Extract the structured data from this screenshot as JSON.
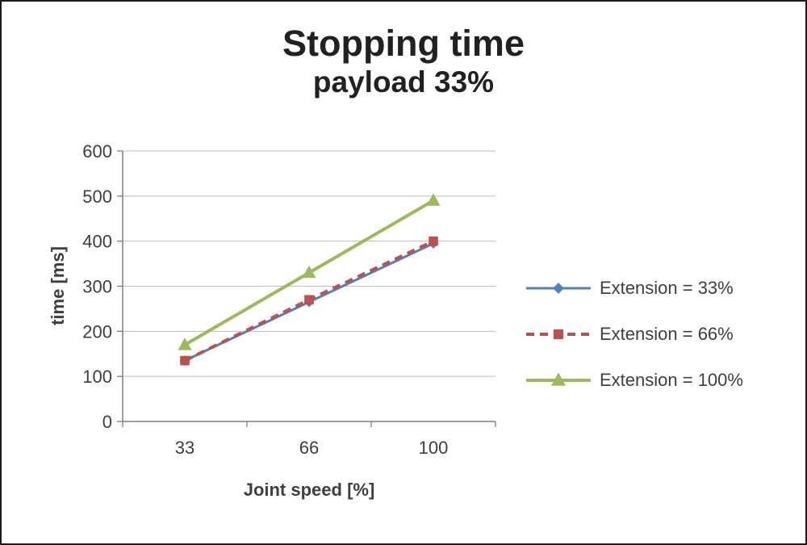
{
  "chart_data": {
    "type": "line",
    "title": "Stopping time",
    "subtitle": "payload 33%",
    "xlabel": "Joint speed [%]",
    "ylabel": "time [ms]",
    "categories": [
      "33",
      "66",
      "100"
    ],
    "series": [
      {
        "name": "Extension = 33%",
        "values": [
          135,
          265,
          395
        ],
        "color": "#4F81BD",
        "marker": "diamond",
        "dash": false,
        "width": 3
      },
      {
        "name": "Extension = 66%",
        "values": [
          135,
          270,
          400
        ],
        "color": "#C0504D",
        "marker": "square",
        "dash": true,
        "width": 4
      },
      {
        "name": "Extension = 100%",
        "values": [
          170,
          330,
          490
        ],
        "color": "#9BBB59",
        "marker": "triangle",
        "dash": false,
        "width": 4
      }
    ],
    "ylim": [
      0,
      600
    ],
    "yticks": [
      0,
      100,
      200,
      300,
      400,
      500,
      600
    ],
    "grid": true,
    "legend_position": "right",
    "colors": {
      "grid": "#bfbfbf",
      "axis": "#7f7f7f",
      "text": "#3f3f3f",
      "title": "#212121",
      "background": "#ffffff"
    }
  }
}
